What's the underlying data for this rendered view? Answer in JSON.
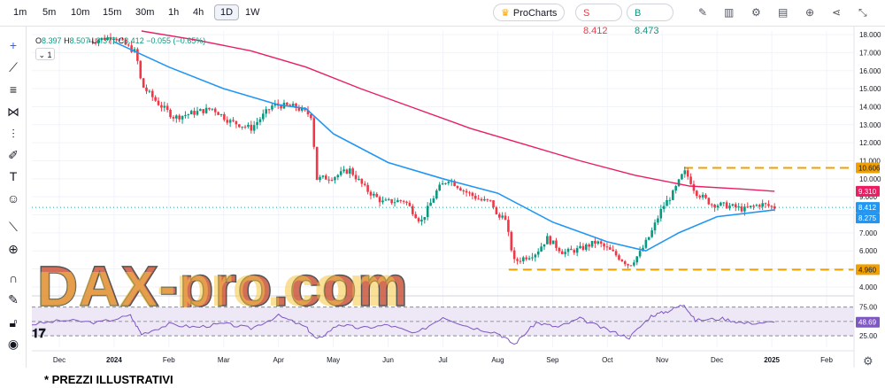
{
  "toolbar": {
    "timeframes": [
      "1m",
      "5m",
      "10m",
      "15m",
      "30m",
      "1h",
      "4h",
      "1D",
      "1W"
    ],
    "active_timeframe": "1D",
    "procharts_label": "ProCharts",
    "sell_label": "S 8.412",
    "buy_label": "B 8.473"
  },
  "legend": {
    "open_label": "O",
    "open": "8.397",
    "high_label": "H",
    "high": "8.507",
    "low_label": "L",
    "low": "8.377",
    "close_label": "C",
    "close": "8.412",
    "change": "−0.055 (−0.65%)",
    "collapse_label": "1"
  },
  "watermark": "DAX-pro.com",
  "footnote": "* PREZZI ILLUSTRATIVI",
  "icons": {
    "toolbar_right": [
      "pencil-icon",
      "indicators-icon",
      "settings-icon",
      "chart-type-icon",
      "add-icon",
      "share-icon",
      "fullscreen-icon"
    ],
    "left_tools": [
      "crosshair-icon",
      "trendline-icon",
      "fib-icon",
      "pattern-icon",
      "projection-icon",
      "brush-icon",
      "text-icon",
      "emoji-icon",
      "ruler-icon",
      "zoom-icon",
      "magnet-icon",
      "lock-drawing-icon",
      "lock-icon",
      "eye-icon"
    ]
  },
  "colors": {
    "up": "#089981",
    "down": "#f23645",
    "ma_fast": "#2196f3",
    "ma_slow": "#e91e63",
    "dashed": "#f0a000",
    "rsi_line": "#7e57c2",
    "rsi_band": "#ede7f6",
    "watermark_fill": "#c84b2f"
  },
  "chart_data": {
    "type": "candlestick",
    "price_axis": {
      "ticks": [
        "18.000",
        "17.000",
        "16.000",
        "15.000",
        "14.000",
        "13.000",
        "12.000",
        "11.000",
        "10.000",
        "9.000",
        "8.000",
        "7.000",
        "6.000",
        "5.000",
        "4.000"
      ],
      "tick_values": [
        18,
        17,
        16,
        15,
        14,
        13,
        12,
        11,
        10,
        9,
        8,
        7,
        6,
        5,
        4
      ],
      "ylim": [
        3.7,
        18.2
      ]
    },
    "time_axis": {
      "labels": [
        "Dec",
        "2024",
        "Feb",
        "Mar",
        "Apr",
        "May",
        "Jun",
        "Jul",
        "Aug",
        "Sep",
        "Oct",
        "Nov",
        "Dec",
        "2025",
        "Feb"
      ],
      "label_t": [
        0.5,
        1.5,
        2.5,
        3.5,
        4.5,
        5.5,
        6.5,
        7.5,
        8.5,
        9.5,
        10.5,
        11.5,
        12.5,
        13.5,
        14.5
      ]
    },
    "price_labels": [
      {
        "text": "10.606",
        "value": 10.606,
        "color": "#f0a000",
        "text_color": "#131722"
      },
      {
        "text": "9.310",
        "value": 9.31,
        "color": "#e91e63",
        "text_color": "#ffffff"
      },
      {
        "text": "8.412",
        "value": 8.412,
        "color": "#2196f3",
        "text_color": "#ffffff"
      },
      {
        "text": "8.275",
        "value": 8.275,
        "color": "#2196f3",
        "text_color": "#ffffff"
      },
      {
        "text": "4.960",
        "value": 4.96,
        "color": "#f0a000",
        "text_color": "#131722"
      }
    ],
    "horizontal_levels": [
      {
        "name": "resistance",
        "value": 10.606,
        "t_start": 11.9
      },
      {
        "name": "support",
        "value": 4.96,
        "t_start": 8.7
      }
    ],
    "series_points": [
      {
        "t": 1.0,
        "v": 17.6
      },
      {
        "t": 1.5,
        "v": 17.9
      },
      {
        "t": 1.9,
        "v": 17.0
      },
      {
        "t": 2.0,
        "v": 15.2
      },
      {
        "t": 2.3,
        "v": 14.2
      },
      {
        "t": 2.6,
        "v": 13.4
      },
      {
        "t": 3.0,
        "v": 13.7
      },
      {
        "t": 3.3,
        "v": 13.9
      },
      {
        "t": 3.6,
        "v": 13.2
      },
      {
        "t": 4.0,
        "v": 12.8
      },
      {
        "t": 4.4,
        "v": 14.1
      },
      {
        "t": 4.8,
        "v": 14.0
      },
      {
        "t": 5.1,
        "v": 13.5
      },
      {
        "t": 5.2,
        "v": 10.0
      },
      {
        "t": 5.5,
        "v": 10.1
      },
      {
        "t": 5.8,
        "v": 10.5
      },
      {
        "t": 6.1,
        "v": 9.4
      },
      {
        "t": 6.4,
        "v": 8.7
      },
      {
        "t": 6.8,
        "v": 8.8
      },
      {
        "t": 7.1,
        "v": 7.6
      },
      {
        "t": 7.4,
        "v": 9.4
      },
      {
        "t": 7.6,
        "v": 10.0
      },
      {
        "t": 7.9,
        "v": 9.3
      },
      {
        "t": 8.2,
        "v": 8.8
      },
      {
        "t": 8.4,
        "v": 8.7
      },
      {
        "t": 8.5,
        "v": 7.7
      },
      {
        "t": 8.6,
        "v": 8.2
      },
      {
        "t": 8.8,
        "v": 5.4
      },
      {
        "t": 9.2,
        "v": 5.9
      },
      {
        "t": 9.4,
        "v": 6.7
      },
      {
        "t": 9.7,
        "v": 5.9
      },
      {
        "t": 10.0,
        "v": 6.1
      },
      {
        "t": 10.3,
        "v": 6.5
      },
      {
        "t": 10.6,
        "v": 5.9
      },
      {
        "t": 10.9,
        "v": 5.2
      },
      {
        "t": 11.1,
        "v": 5.9
      },
      {
        "t": 11.3,
        "v": 7.0
      },
      {
        "t": 11.5,
        "v": 8.4
      },
      {
        "t": 11.7,
        "v": 9.2
      },
      {
        "t": 11.9,
        "v": 10.4
      },
      {
        "t": 12.0,
        "v": 10.0
      },
      {
        "t": 12.1,
        "v": 9.3
      },
      {
        "t": 12.4,
        "v": 8.6
      },
      {
        "t": 12.7,
        "v": 8.5
      },
      {
        "t": 13.0,
        "v": 8.3
      },
      {
        "t": 13.3,
        "v": 8.6
      },
      {
        "t": 13.55,
        "v": 8.41
      }
    ],
    "ma_fast": [
      {
        "t": 1.5,
        "v": 17.6
      },
      {
        "t": 2.5,
        "v": 16.2
      },
      {
        "t": 3.5,
        "v": 15.0
      },
      {
        "t": 4.5,
        "v": 14.1
      },
      {
        "t": 5.0,
        "v": 13.9
      },
      {
        "t": 5.5,
        "v": 12.5
      },
      {
        "t": 6.5,
        "v": 10.9
      },
      {
        "t": 7.5,
        "v": 10.0
      },
      {
        "t": 8.5,
        "v": 9.2
      },
      {
        "t": 9.5,
        "v": 7.6
      },
      {
        "t": 10.5,
        "v": 6.5
      },
      {
        "t": 11.2,
        "v": 6.0
      },
      {
        "t": 11.8,
        "v": 7.0
      },
      {
        "t": 12.5,
        "v": 7.9
      },
      {
        "t": 13.55,
        "v": 8.275
      }
    ],
    "ma_slow": [
      {
        "t": 2.0,
        "v": 18.2
      },
      {
        "t": 3.0,
        "v": 17.7
      },
      {
        "t": 4.0,
        "v": 17.1
      },
      {
        "t": 5.0,
        "v": 16.2
      },
      {
        "t": 6.0,
        "v": 15.0
      },
      {
        "t": 7.0,
        "v": 13.9
      },
      {
        "t": 8.0,
        "v": 12.8
      },
      {
        "t": 9.0,
        "v": 11.9
      },
      {
        "t": 10.0,
        "v": 11.0
      },
      {
        "t": 11.0,
        "v": 10.2
      },
      {
        "t": 12.0,
        "v": 9.6
      },
      {
        "t": 13.0,
        "v": 9.42
      },
      {
        "t": 13.55,
        "v": 9.31
      }
    ],
    "rsi": {
      "ticks": [
        "75.00",
        "50.00",
        "25.00"
      ],
      "tick_values": [
        75,
        50,
        25
      ],
      "ylim": [
        5,
        90
      ],
      "value_label": "48.69",
      "value": 48.69,
      "points": [
        {
          "t": 0.0,
          "v": 45
        },
        {
          "t": 0.6,
          "v": 52
        },
        {
          "t": 1.2,
          "v": 48
        },
        {
          "t": 1.8,
          "v": 60
        },
        {
          "t": 2.0,
          "v": 28
        },
        {
          "t": 2.5,
          "v": 45
        },
        {
          "t": 3.0,
          "v": 40
        },
        {
          "t": 3.5,
          "v": 46
        },
        {
          "t": 4.0,
          "v": 38
        },
        {
          "t": 4.5,
          "v": 60
        },
        {
          "t": 5.0,
          "v": 40
        },
        {
          "t": 5.2,
          "v": 18
        },
        {
          "t": 5.6,
          "v": 45
        },
        {
          "t": 6.0,
          "v": 38
        },
        {
          "t": 6.5,
          "v": 44
        },
        {
          "t": 7.0,
          "v": 28
        },
        {
          "t": 7.5,
          "v": 58
        },
        {
          "t": 8.0,
          "v": 40
        },
        {
          "t": 8.5,
          "v": 30
        },
        {
          "t": 8.8,
          "v": 10
        },
        {
          "t": 9.2,
          "v": 48
        },
        {
          "t": 9.6,
          "v": 40
        },
        {
          "t": 10.0,
          "v": 55
        },
        {
          "t": 10.5,
          "v": 35
        },
        {
          "t": 10.9,
          "v": 22
        },
        {
          "t": 11.3,
          "v": 60
        },
        {
          "t": 11.6,
          "v": 68
        },
        {
          "t": 11.9,
          "v": 80
        },
        {
          "t": 12.1,
          "v": 52
        },
        {
          "t": 12.6,
          "v": 55
        },
        {
          "t": 13.0,
          "v": 47
        },
        {
          "t": 13.55,
          "v": 48.69
        }
      ]
    }
  }
}
